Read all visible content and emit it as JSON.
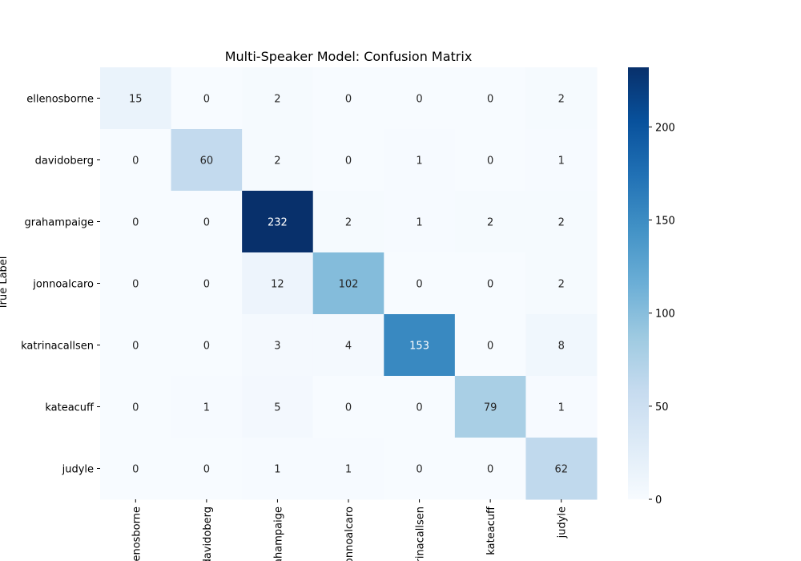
{
  "chart_data": {
    "type": "heatmap",
    "title": "Multi-Speaker Model: Confusion Matrix",
    "ylabel": "True Label",
    "xlabel": "",
    "row_labels": [
      "ellenosborne",
      "davidoberg",
      "grahampaige",
      "jonnoalcaro",
      "katrinacallsen",
      "kateacuff",
      "judyle"
    ],
    "col_labels": [
      "ellenosborne",
      "davidoberg",
      "grahampaige",
      "jonnoalcaro",
      "katrinacallsen",
      "kateacuff",
      "judyle"
    ],
    "values": [
      [
        15,
        0,
        2,
        0,
        0,
        0,
        2
      ],
      [
        0,
        60,
        2,
        0,
        1,
        0,
        1
      ],
      [
        0,
        0,
        232,
        2,
        1,
        2,
        2
      ],
      [
        0,
        0,
        12,
        102,
        0,
        0,
        2
      ],
      [
        0,
        0,
        3,
        4,
        153,
        0,
        8
      ],
      [
        0,
        1,
        5,
        0,
        0,
        79,
        1
      ],
      [
        0,
        0,
        1,
        1,
        0,
        0,
        62
      ]
    ],
    "colorbar": {
      "min": 0,
      "max": 232,
      "ticks": [
        0,
        50,
        100,
        150,
        200
      ]
    },
    "colormap": "Blues",
    "grid": false
  }
}
